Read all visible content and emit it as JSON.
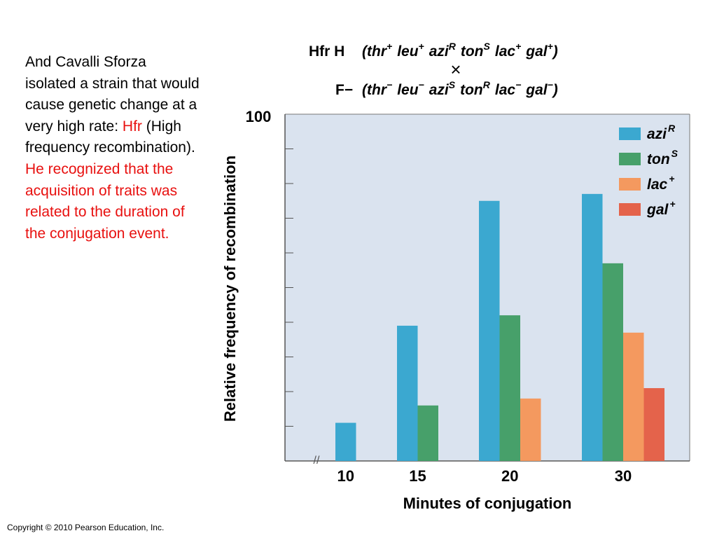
{
  "text": {
    "p1": "And Cavalli Sforza isolated a strain that would cause genetic change at a very high rate: ",
    "hfr": "Hfr",
    "p2": " (High frequency recombination).  ",
    "p3": "He recognized that the acquisition of traits was related to the duration of the conjugation event."
  },
  "copyright": "Copyright © 2010 Pearson Education, Inc.",
  "cross": {
    "line1_label": "Hfr H",
    "line1_genotype": "(thr+ leu+ aziR tonS lac+ gal+)",
    "times": "×",
    "line2_label": "F−",
    "line2_genotype": "(thr− leu− aziS tonR lac− gal−)"
  },
  "chart_data": {
    "type": "bar",
    "ylabel": "Relative frequency of recombination",
    "xlabel": "Minutes of conjugation",
    "y_top_label": "100",
    "ylim": [
      0,
      100
    ],
    "y_tick_step": 10,
    "x_axis_break": "//",
    "grid": false,
    "legend_position": "top-right",
    "categories": [
      "10",
      "15",
      "20",
      "30"
    ],
    "series": [
      {
        "name": "aziR",
        "base": "azi",
        "sup": "R",
        "color": "#3ba8d0",
        "values": [
          11,
          39,
          75,
          77
        ]
      },
      {
        "name": "tonS",
        "base": "ton",
        "sup": "S",
        "color": "#47a06a",
        "values": [
          null,
          16,
          42,
          57
        ]
      },
      {
        "name": "lac+",
        "base": "lac",
        "sup": "+",
        "color": "#f4995f",
        "values": [
          null,
          null,
          18,
          37
        ]
      },
      {
        "name": "gal+",
        "base": "gal",
        "sup": "+",
        "color": "#e4634b",
        "values": [
          null,
          null,
          null,
          21
        ]
      }
    ]
  }
}
